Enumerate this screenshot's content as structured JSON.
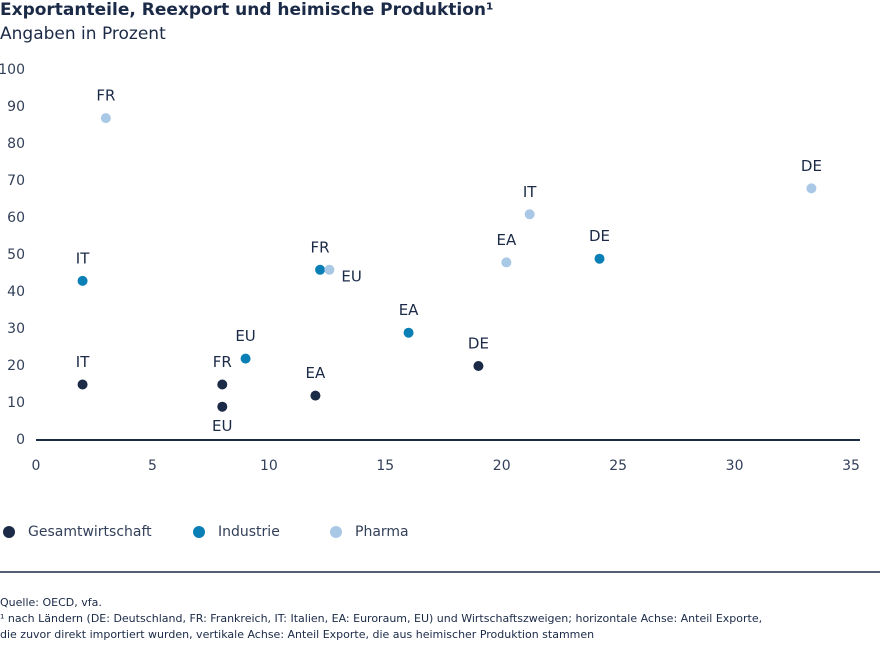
{
  "chart_data": {
    "type": "scatter",
    "title": "Exportanteile, Reexport und heimische Produktion¹",
    "subtitle": "Angaben in Prozent",
    "xlim": [
      0,
      35
    ],
    "xticks": [
      0,
      5,
      10,
      15,
      20,
      25,
      30,
      35
    ],
    "ylim": [
      0,
      100
    ],
    "yticks": [
      0,
      10,
      20,
      30,
      40,
      50,
      60,
      70,
      80,
      90,
      100
    ],
    "series": [
      {
        "name": "Gesamtwirtschaft",
        "color": "#1b2a47",
        "labels": [
          "IT",
          "FR",
          "EU",
          "EA",
          "DE"
        ],
        "x": [
          2,
          8,
          8,
          12,
          19
        ],
        "y": [
          15,
          15,
          9,
          12,
          20
        ]
      },
      {
        "name": "Industrie",
        "color": "#0a7fb5",
        "labels": [
          "IT",
          "EU",
          "FR",
          "EA",
          "DE"
        ],
        "x": [
          2,
          9,
          12.2,
          16,
          24.2
        ],
        "y": [
          43,
          22,
          46,
          29,
          49
        ]
      },
      {
        "name": "Pharma",
        "color": "#a9c8e6",
        "labels": [
          "FR",
          "EU",
          "EA",
          "IT",
          "DE"
        ],
        "x": [
          3,
          12.6,
          20.2,
          21.2,
          33.3
        ],
        "y": [
          87,
          46,
          48,
          61,
          68
        ]
      }
    ],
    "source": "Quelle: OECD, vfa.",
    "footnote": [
      "¹ nach Ländern (DE: Deutschland, FR: Frankreich, IT: Italien, EA: Euroraum, EU) und Wirtschaftszweigen; horizontale Achse: Anteil Exporte,",
      "die zuvor direkt importiert wurden, vertikale Achse: Anteil Exporte, die aus heimischer Produktion stammen"
    ]
  }
}
